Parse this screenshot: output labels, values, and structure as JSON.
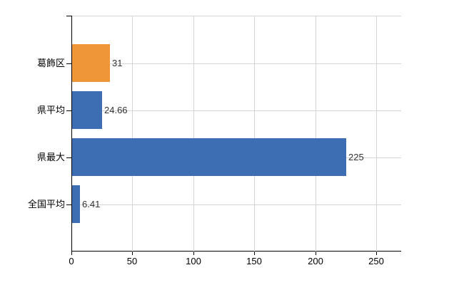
{
  "chart_data": {
    "type": "bar",
    "orientation": "horizontal",
    "categories": [
      "葛飾区",
      "県平均",
      "県最大",
      "全国平均"
    ],
    "values": [
      31,
      24.66,
      225,
      6.41
    ],
    "value_labels": [
      "31",
      "24.66",
      "225",
      "6.41"
    ],
    "bar_colors": [
      "#ef9639",
      "#3d6eb4",
      "#3d6eb4",
      "#3d6eb4"
    ],
    "x_ticks": [
      0,
      50,
      100,
      150,
      200,
      250
    ],
    "xlim": [
      0,
      270
    ],
    "grid": true,
    "legend": "none",
    "colors": {
      "axis": "#000000",
      "grid": "#d4d6d4",
      "value_label": "#333333",
      "category_label": "#000000",
      "background": "#ffffff"
    }
  }
}
